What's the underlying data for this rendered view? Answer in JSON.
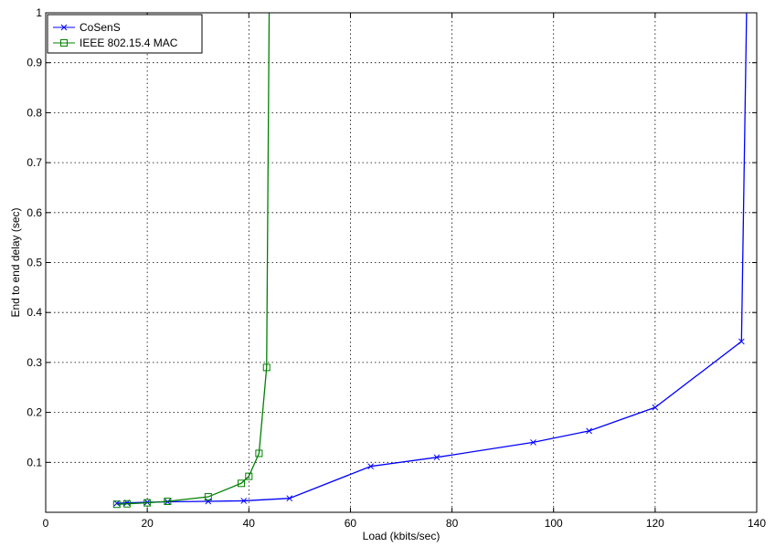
{
  "chart_data": {
    "type": "line",
    "title": "",
    "xlabel": "Load (kbits/sec)",
    "ylabel": "End to end delay (sec)",
    "xlim": [
      0,
      140
    ],
    "ylim": [
      0,
      1
    ],
    "xticks": [
      0,
      20,
      40,
      60,
      80,
      100,
      120,
      140
    ],
    "yticks": [
      0.1,
      0.2,
      0.3,
      0.4,
      0.5,
      0.6,
      0.7,
      0.8,
      0.9,
      1
    ],
    "ytick_labels": [
      "0.1",
      "0.2",
      "0.3",
      "0.4",
      "0.5",
      "0.6",
      "0.7",
      "0.8",
      "0.9",
      "1"
    ],
    "grid": true,
    "legend_position": "top-left",
    "series": [
      {
        "name": "CoSenS",
        "color": "#0000ff",
        "marker": "x",
        "x": [
          14,
          16,
          20,
          24,
          32,
          39,
          48,
          64,
          77,
          96,
          107,
          120,
          137,
          138
        ],
        "y": [
          0.018,
          0.019,
          0.02,
          0.021,
          0.022,
          0.023,
          0.028,
          0.092,
          0.11,
          0.14,
          0.163,
          0.21,
          0.342,
          1.0
        ],
        "marked_points": 13
      },
      {
        "name": "IEEE 802.15.4 MAC",
        "color": "#008000",
        "marker": "square",
        "x": [
          14,
          16,
          20,
          24,
          32,
          38.5,
          40,
          42,
          43.5,
          44
        ],
        "y": [
          0.016,
          0.017,
          0.019,
          0.022,
          0.031,
          0.058,
          0.072,
          0.118,
          0.29,
          1.0
        ],
        "marked_points": 9
      }
    ]
  }
}
